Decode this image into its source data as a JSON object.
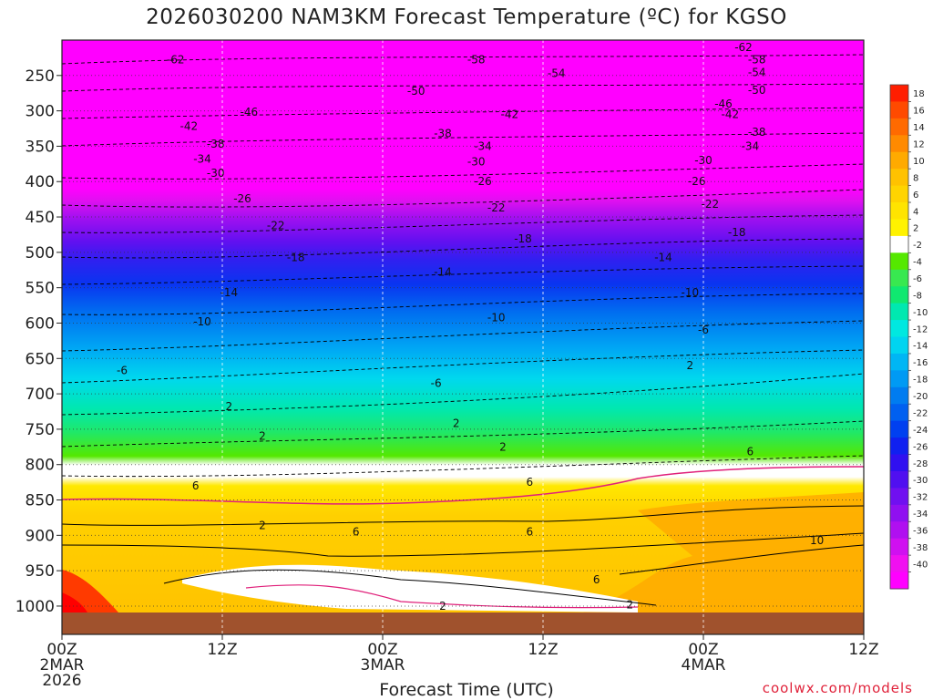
{
  "chart_data": {
    "type": "heatmap",
    "title": "2026030200 NAM3KM Forecast Temperature (ºC) for KGSO",
    "xlabel": "Forecast Time (UTC)",
    "ylabel": "",
    "x_ticks": [
      {
        "hour": 0,
        "lines": [
          "00Z",
          "2MAR",
          "2026"
        ]
      },
      {
        "hour": 12,
        "lines": [
          "12Z"
        ]
      },
      {
        "hour": 24,
        "lines": [
          "00Z",
          "3MAR"
        ]
      },
      {
        "hour": 36,
        "lines": [
          "12Z"
        ]
      },
      {
        "hour": 48,
        "lines": [
          "00Z",
          "4MAR"
        ]
      },
      {
        "hour": 60,
        "lines": [
          "12Z"
        ]
      }
    ],
    "xlim": [
      0,
      60
    ],
    "ylim": [
      1040,
      200
    ],
    "pressure_ticks": [
      250,
      300,
      350,
      400,
      450,
      500,
      550,
      600,
      650,
      700,
      750,
      800,
      850,
      900,
      950,
      1000
    ],
    "colorbar": {
      "labels": [
        18,
        16,
        14,
        12,
        10,
        8,
        6,
        4,
        2,
        -2,
        -4,
        -6,
        -8,
        -10,
        -12,
        -14,
        -16,
        -18,
        -20,
        -22,
        -24,
        -26,
        -28,
        -30,
        -32,
        -34,
        -36,
        -38,
        -40
      ],
      "colors": [
        "#ff1e00",
        "#ff4a00",
        "#ff6a00",
        "#ff8a00",
        "#ffaa00",
        "#ffc200",
        "#ffd400",
        "#ffe400",
        "#fff200",
        "#ffffff",
        "#55e800",
        "#38e850",
        "#10e870",
        "#00e8b0",
        "#00e8e0",
        "#00d4f0",
        "#00b6f4",
        "#009af4",
        "#007cf0",
        "#0060f0",
        "#0040f0",
        "#1020f0",
        "#3010f0",
        "#5010f0",
        "#7010f0",
        "#9010f0",
        "#b010f0",
        "#d010f0",
        "#f010f0",
        "#ff00ff"
      ]
    },
    "isotherm_labels": [
      {
        "value": -62,
        "points": [
          {
            "h": 8.5,
            "p": 228
          },
          {
            "h": 51,
            "p": 210
          }
        ]
      },
      {
        "value": -58,
        "points": [
          {
            "h": 31,
            "p": 228
          },
          {
            "h": 52,
            "p": 228
          }
        ]
      },
      {
        "value": -54,
        "points": [
          {
            "h": 37,
            "p": 247
          },
          {
            "h": 52,
            "p": 246
          }
        ]
      },
      {
        "value": -50,
        "points": [
          {
            "h": 26.5,
            "p": 272
          },
          {
            "h": 52,
            "p": 271
          }
        ]
      },
      {
        "value": -46,
        "points": [
          {
            "h": 14,
            "p": 302
          },
          {
            "h": 49.5,
            "p": 290
          }
        ]
      },
      {
        "value": -42,
        "points": [
          {
            "h": 9.5,
            "p": 322
          },
          {
            "h": 33.5,
            "p": 305
          },
          {
            "h": 50,
            "p": 305
          }
        ]
      },
      {
        "value": -38,
        "points": [
          {
            "h": 11.5,
            "p": 347
          },
          {
            "h": 28.5,
            "p": 332
          },
          {
            "h": 52,
            "p": 330
          }
        ]
      },
      {
        "value": -34,
        "points": [
          {
            "h": 10.5,
            "p": 368
          },
          {
            "h": 31.5,
            "p": 350
          },
          {
            "h": 51.5,
            "p": 350
          }
        ]
      },
      {
        "value": -30,
        "points": [
          {
            "h": 11.5,
            "p": 388
          },
          {
            "h": 31,
            "p": 372
          },
          {
            "h": 48,
            "p": 370
          }
        ]
      },
      {
        "value": -26,
        "points": [
          {
            "h": 13.5,
            "p": 424
          },
          {
            "h": 31.5,
            "p": 400
          },
          {
            "h": 47.5,
            "p": 400
          }
        ]
      },
      {
        "value": -22,
        "points": [
          {
            "h": 16,
            "p": 462
          },
          {
            "h": 32.5,
            "p": 437
          },
          {
            "h": 48.5,
            "p": 432
          }
        ]
      },
      {
        "value": -18,
        "points": [
          {
            "h": 17.5,
            "p": 507
          },
          {
            "h": 34.5,
            "p": 481
          },
          {
            "h": 50.5,
            "p": 472
          }
        ]
      },
      {
        "value": -14,
        "points": [
          {
            "h": 12.5,
            "p": 557
          },
          {
            "h": 28.5,
            "p": 528
          },
          {
            "h": 45,
            "p": 507
          }
        ]
      },
      {
        "value": -10,
        "points": [
          {
            "h": 10.5,
            "p": 598
          },
          {
            "h": 32.5,
            "p": 592
          },
          {
            "h": 47,
            "p": 557
          }
        ]
      },
      {
        "value": -6,
        "points": [
          {
            "h": 4.5,
            "p": 667
          },
          {
            "h": 28,
            "p": 685
          },
          {
            "h": 48,
            "p": 610
          }
        ]
      },
      {
        "value": 2,
        "points": [
          {
            "h": 12.5,
            "p": 718
          },
          {
            "h": 15,
            "p": 760
          },
          {
            "h": 29.5,
            "p": 742
          },
          {
            "h": 33,
            "p": 775
          },
          {
            "h": 47,
            "p": 660
          },
          {
            "h": 15,
            "p": 886
          },
          {
            "h": 28.5,
            "p": 1000
          },
          {
            "h": 42.5,
            "p": 998
          }
        ]
      },
      {
        "value": 6,
        "points": [
          {
            "h": 10,
            "p": 830
          },
          {
            "h": 35,
            "p": 825
          },
          {
            "h": 51.5,
            "p": 782
          },
          {
            "h": 22,
            "p": 895
          },
          {
            "h": 35,
            "p": 895
          },
          {
            "h": 40,
            "p": 963
          }
        ]
      },
      {
        "value": 10,
        "points": [
          {
            "h": 56.5,
            "p": 907
          }
        ]
      }
    ]
  },
  "credit": "coolwx.com/models"
}
